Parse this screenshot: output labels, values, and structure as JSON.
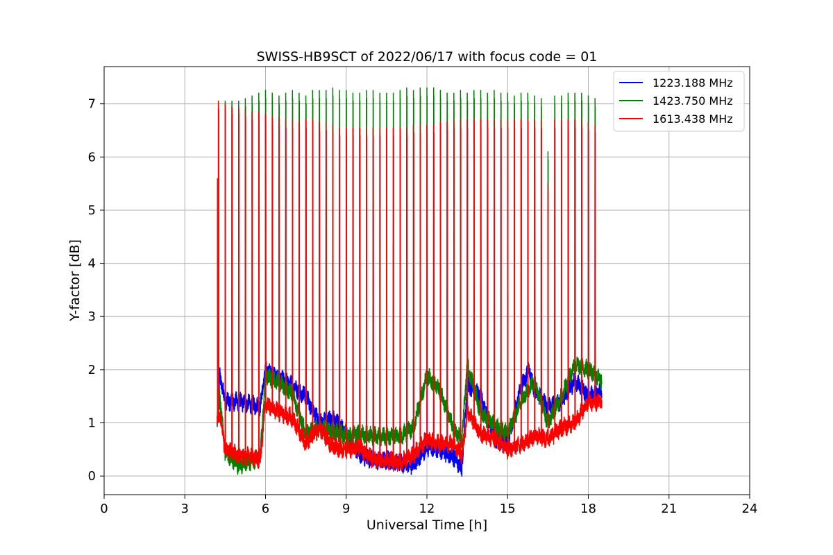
{
  "chart_data": {
    "type": "line",
    "title": "SWISS-HB9SCT of 2022/06/17 with focus code = 01",
    "xlabel": "Universal Time [h]",
    "ylabel": "Y-factor [dB]",
    "xlim": [
      0,
      24
    ],
    "ylim": [
      -0.35,
      7.7
    ],
    "xticks": [
      0,
      3,
      6,
      9,
      12,
      15,
      18,
      21,
      24
    ],
    "yticks": [
      0,
      1,
      2,
      3,
      4,
      5,
      6,
      7
    ],
    "grid": true,
    "legend_position": "top-right",
    "pulse_times_h": [
      4.25,
      4.5,
      4.75,
      5.0,
      5.25,
      5.5,
      5.75,
      6.0,
      6.25,
      6.5,
      6.75,
      7.0,
      7.25,
      7.5,
      7.75,
      8.0,
      8.25,
      8.5,
      8.75,
      9.0,
      9.25,
      9.5,
      9.75,
      10.0,
      10.25,
      10.5,
      10.75,
      11.0,
      11.25,
      11.5,
      11.75,
      12.0,
      12.25,
      12.5,
      12.75,
      13.0,
      13.25,
      13.5,
      13.75,
      14.0,
      14.25,
      14.5,
      14.75,
      15.0,
      15.25,
      15.5,
      15.75,
      16.0,
      16.25,
      16.5,
      16.75,
      17.0,
      17.25,
      17.5,
      17.75,
      18.0,
      18.25
    ],
    "series": [
      {
        "name": "1223.188 MHz",
        "color": "#0000ff",
        "baseline": {
          "x": [
            4.2,
            4.3,
            4.5,
            5.0,
            5.5,
            5.8,
            6.0,
            6.5,
            7.0,
            7.5,
            8.0,
            8.5,
            9.0,
            9.5,
            10.0,
            10.5,
            11.0,
            11.5,
            12.0,
            12.5,
            13.0,
            13.3,
            13.5,
            14.0,
            14.5,
            15.0,
            15.5,
            15.8,
            16.0,
            16.5,
            17.0,
            17.5,
            18.0,
            18.5
          ],
          "y": [
            1.0,
            1.9,
            1.4,
            1.4,
            1.35,
            1.3,
            2.0,
            1.85,
            1.7,
            1.5,
            1.0,
            1.1,
            0.8,
            0.4,
            0.3,
            0.3,
            0.25,
            0.2,
            0.55,
            0.5,
            0.35,
            0.15,
            1.7,
            1.5,
            0.7,
            0.6,
            1.7,
            2.0,
            1.6,
            1.3,
            1.4,
            1.8,
            1.5,
            1.6
          ]
        },
        "pulse_peaks": [
          7.0,
          6.95,
          6.95,
          6.95,
          6.9,
          6.85,
          6.85,
          6.8,
          6.75,
          6.75,
          6.7,
          6.7,
          6.65,
          6.7,
          6.7,
          6.65,
          6.65,
          6.6,
          6.55,
          6.55,
          6.55,
          6.55,
          6.55,
          6.55,
          6.55,
          6.55,
          6.55,
          6.55,
          6.55,
          6.6,
          6.6,
          6.6,
          6.6,
          6.65,
          6.65,
          6.7,
          6.7,
          6.7,
          6.7,
          6.7,
          6.7,
          6.7,
          6.7,
          6.7,
          6.7,
          6.7,
          6.7,
          6.7,
          6.7,
          5.5,
          6.7,
          6.7,
          6.7,
          6.7,
          6.7,
          6.65,
          6.6
        ]
      },
      {
        "name": "1423.750 MHz",
        "color": "#008000",
        "baseline": {
          "x": [
            4.2,
            4.3,
            4.5,
            5.0,
            5.5,
            5.8,
            6.0,
            6.5,
            7.0,
            7.5,
            8.0,
            8.5,
            9.0,
            9.5,
            10.0,
            10.5,
            11.0,
            11.5,
            12.0,
            12.5,
            13.0,
            13.3,
            13.5,
            14.0,
            14.5,
            15.0,
            15.5,
            16.0,
            16.5,
            17.0,
            17.5,
            18.0,
            18.5
          ],
          "y": [
            1.0,
            1.5,
            0.45,
            0.2,
            0.3,
            0.35,
            1.9,
            1.75,
            1.55,
            0.8,
            0.9,
            0.85,
            0.75,
            0.8,
            0.75,
            0.75,
            0.75,
            0.9,
            1.9,
            1.6,
            0.85,
            0.7,
            2.1,
            1.2,
            0.95,
            0.8,
            1.4,
            1.8,
            1.0,
            1.5,
            2.1,
            2.0,
            1.8
          ]
        },
        "pulse_peaks": [
          7.05,
          7.05,
          7.05,
          7.05,
          7.1,
          7.15,
          7.2,
          7.25,
          7.2,
          7.15,
          7.2,
          7.25,
          7.2,
          7.15,
          7.25,
          7.25,
          7.25,
          7.3,
          7.25,
          7.25,
          7.2,
          7.2,
          7.25,
          7.25,
          7.2,
          7.2,
          7.2,
          7.25,
          7.3,
          7.25,
          7.3,
          7.3,
          7.3,
          7.25,
          7.2,
          7.2,
          7.25,
          7.2,
          7.25,
          7.25,
          7.2,
          7.25,
          7.2,
          7.2,
          7.15,
          7.2,
          7.2,
          7.15,
          7.1,
          6.1,
          7.15,
          7.15,
          7.2,
          7.2,
          7.2,
          7.15,
          7.1
        ]
      },
      {
        "name": "1613.438 MHz",
        "color": "#ff0000",
        "baseline": {
          "x": [
            4.2,
            4.3,
            4.5,
            5.0,
            5.5,
            5.8,
            6.0,
            6.5,
            7.0,
            7.5,
            8.0,
            8.5,
            9.0,
            9.5,
            10.0,
            10.5,
            11.0,
            11.5,
            12.0,
            12.5,
            13.0,
            13.3,
            13.5,
            14.0,
            14.5,
            15.0,
            15.5,
            16.0,
            16.5,
            17.0,
            17.5,
            18.0,
            18.5
          ],
          "y": [
            1.0,
            1.2,
            0.5,
            0.4,
            0.35,
            0.3,
            1.35,
            1.2,
            1.1,
            0.6,
            0.9,
            0.55,
            0.5,
            0.55,
            0.3,
            0.3,
            0.25,
            0.4,
            0.7,
            0.6,
            0.6,
            0.4,
            1.2,
            0.8,
            0.7,
            0.5,
            0.6,
            0.75,
            0.7,
            0.9,
            1.0,
            1.4,
            1.4
          ]
        },
        "pulse_peaks": [
          7.05,
          7.0,
          6.95,
          6.95,
          6.9,
          6.85,
          6.85,
          6.8,
          6.75,
          6.75,
          6.7,
          6.7,
          6.65,
          6.7,
          6.7,
          6.65,
          6.65,
          6.6,
          6.55,
          6.55,
          6.55,
          6.55,
          6.55,
          6.55,
          6.55,
          6.55,
          6.55,
          6.55,
          6.55,
          6.6,
          6.6,
          6.6,
          6.6,
          6.65,
          6.65,
          6.7,
          6.7,
          6.7,
          6.7,
          6.7,
          6.7,
          6.7,
          6.7,
          6.7,
          6.7,
          6.7,
          6.7,
          6.7,
          6.7,
          5.5,
          6.7,
          6.7,
          6.7,
          6.7,
          6.7,
          6.65,
          6.6
        ]
      }
    ]
  }
}
